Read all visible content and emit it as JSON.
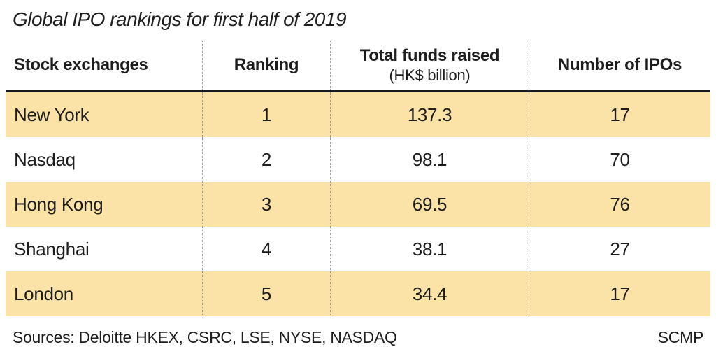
{
  "title": "Global IPO rankings for first half of 2019",
  "header": {
    "col1": "Stock exchanges",
    "col2": "Ranking",
    "col3": "Total funds raised",
    "col3_sub": "(HK$ billion)",
    "col4": "Number of IPOs"
  },
  "rows": [
    {
      "exchange": "New York",
      "ranking": "1",
      "funds": "137.3",
      "ipos": "17"
    },
    {
      "exchange": "Nasdaq",
      "ranking": "2",
      "funds": "98.1",
      "ipos": "70"
    },
    {
      "exchange": "Hong Kong",
      "ranking": "3",
      "funds": "69.5",
      "ipos": "76"
    },
    {
      "exchange": "Shanghai",
      "ranking": "4",
      "funds": "38.1",
      "ipos": "27"
    },
    {
      "exchange": "London",
      "ranking": "5",
      "funds": "34.4",
      "ipos": "17"
    }
  ],
  "footer": {
    "sources": "Sources: Deloitte HKEX, CSRC, LSE, NYSE, NASDAQ",
    "credit": "SCMP"
  },
  "colors": {
    "row_highlight": "#fbe2a6",
    "header_rule": "#1a1a1a",
    "column_divider": "#949494",
    "text": "#1d1d1d"
  },
  "chart_data": {
    "type": "table",
    "title": "Global IPO rankings for first half of 2019",
    "columns": [
      "Stock exchanges",
      "Ranking",
      "Total funds raised (HK$ billion)",
      "Number of IPOs"
    ],
    "rows": [
      [
        "New York",
        1,
        137.3,
        17
      ],
      [
        "Nasdaq",
        2,
        98.1,
        70
      ],
      [
        "Hong Kong",
        3,
        69.5,
        76
      ],
      [
        "Shanghai",
        4,
        38.1,
        27
      ],
      [
        "London",
        5,
        34.4,
        17
      ]
    ],
    "highlighted_rows": [
      "New York",
      "Hong Kong",
      "London"
    ],
    "sources": "Deloitte HKEX, CSRC, LSE, NYSE, NASDAQ",
    "credit": "SCMP"
  }
}
